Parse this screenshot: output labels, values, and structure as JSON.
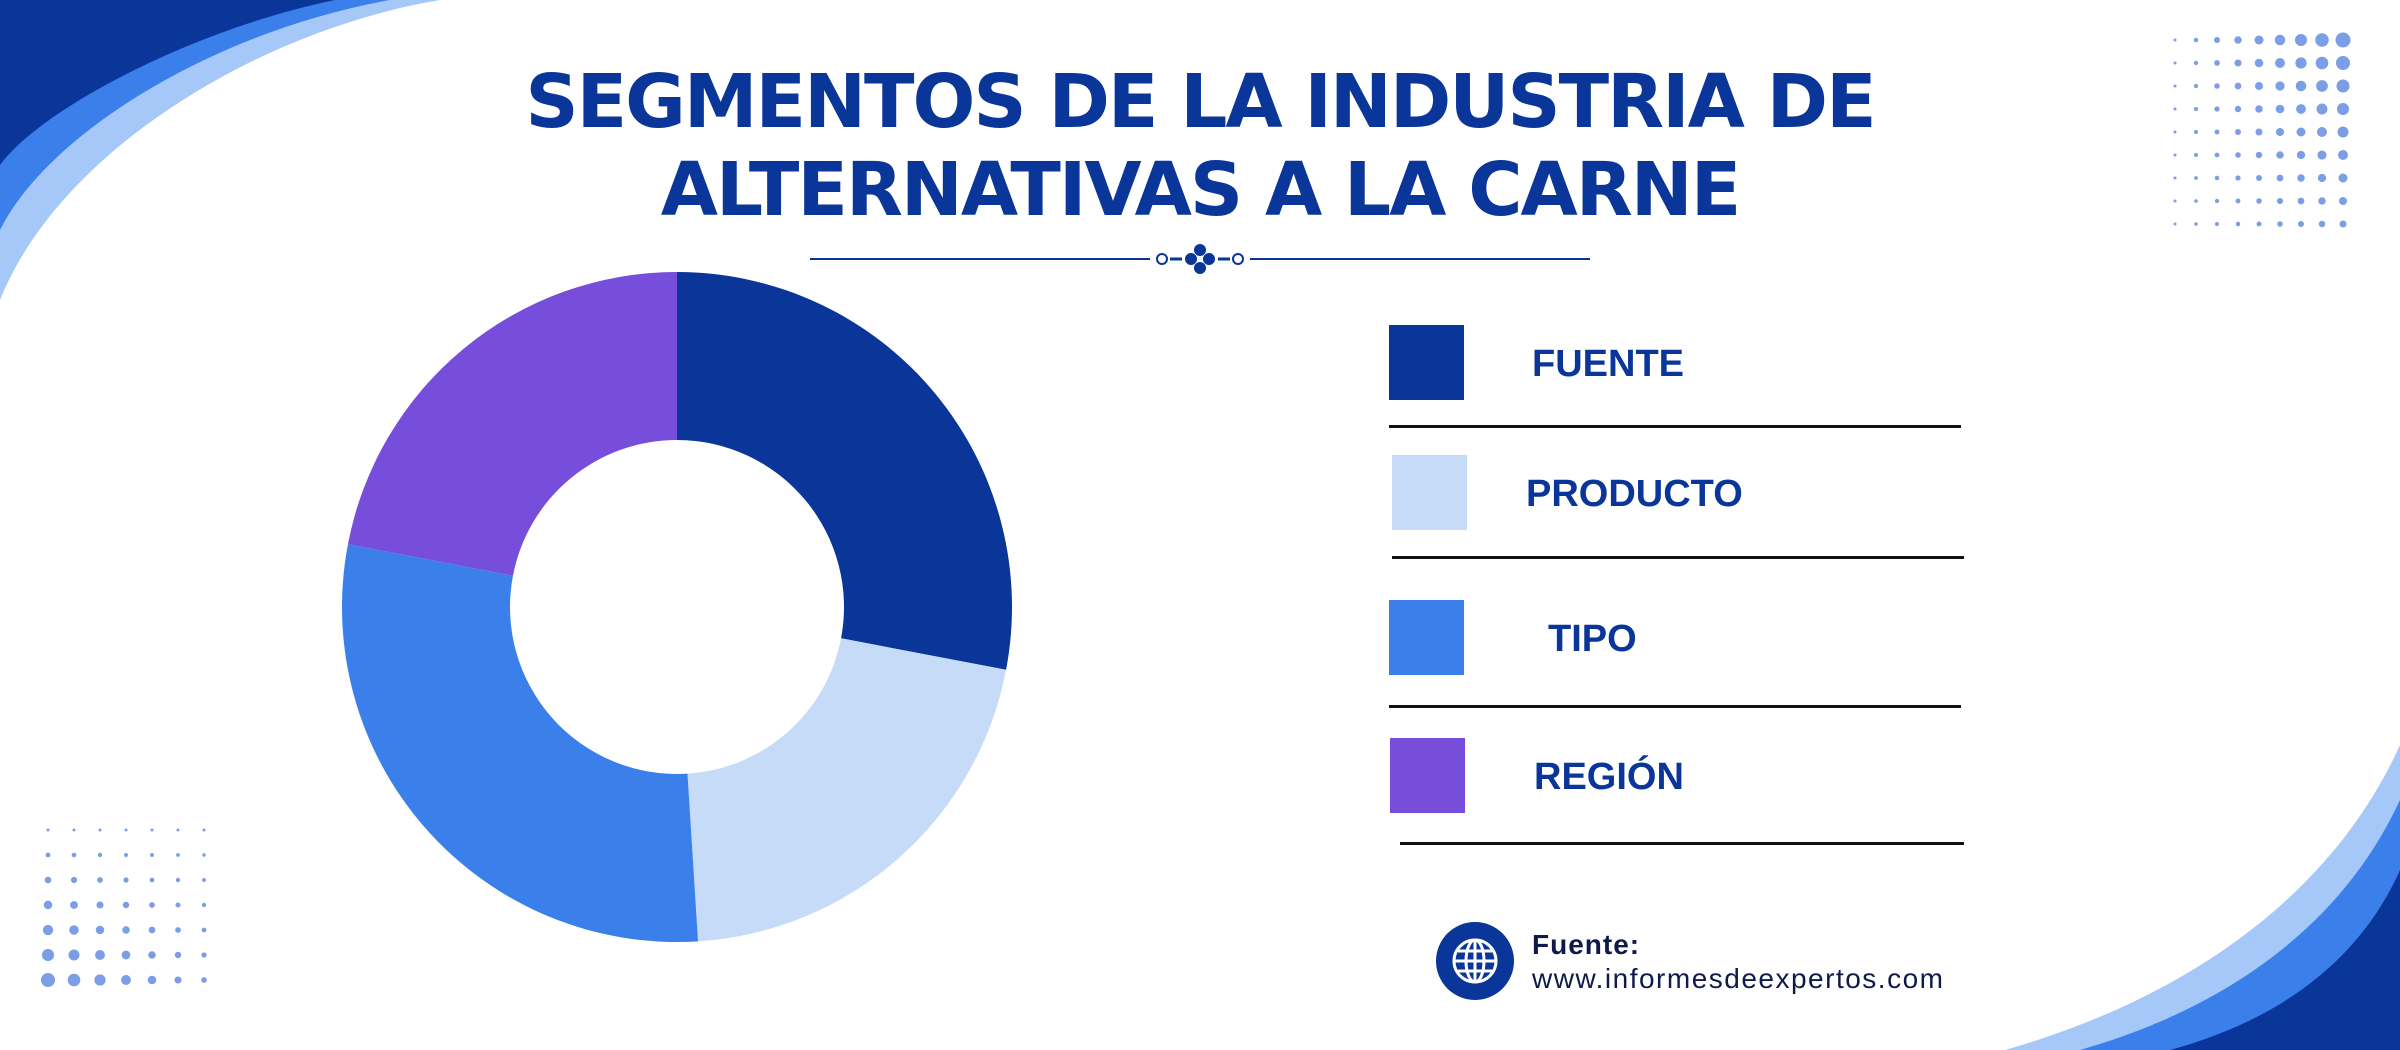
{
  "header": {
    "title_line1": "SEGMENTOS DE LA INDUSTRIA DE",
    "title_line2": "ALTERNATIVAS A LA CARNE"
  },
  "chart_data": {
    "type": "pie",
    "donut": true,
    "categories": [
      "FUENTE",
      "PRODUCTO",
      "TIPO",
      "REGIÓN"
    ],
    "values": [
      28,
      21,
      29,
      22
    ],
    "colors": [
      "#0a3599",
      "#c5dbf8",
      "#3b80ea",
      "#774ddc"
    ],
    "legend_position": "right"
  },
  "source": {
    "label": "Fuente:",
    "url": "www.informesdeexpertos.com",
    "icon": "globe-icon"
  },
  "decor": {
    "colors": {
      "dark_blue": "#0a3599",
      "mid_blue": "#3b80ea",
      "light_blue": "#a6c8f8",
      "dots": "#7c9ee6"
    }
  }
}
